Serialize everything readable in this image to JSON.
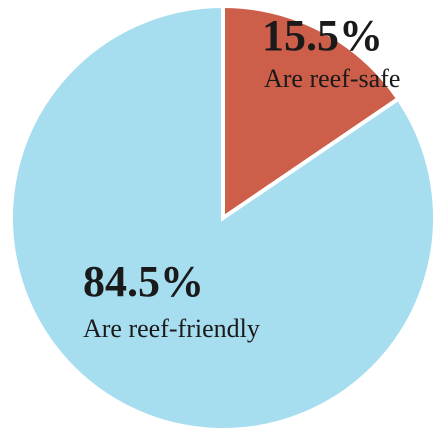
{
  "chart_data": {
    "type": "pie",
    "start_angle_deg": 0,
    "direction": "clockwise",
    "slices": [
      {
        "key": "reef-safe",
        "value": 15.5,
        "value_label": "15.5%",
        "label": "Are reef-safe",
        "color": "#CC5E4A"
      },
      {
        "key": "reef-friendly",
        "value": 84.5,
        "value_label": "84.5%",
        "label": "Are reef-friendly",
        "color": "#A6DEF0"
      }
    ],
    "slice_separator_color": "#ffffff"
  }
}
